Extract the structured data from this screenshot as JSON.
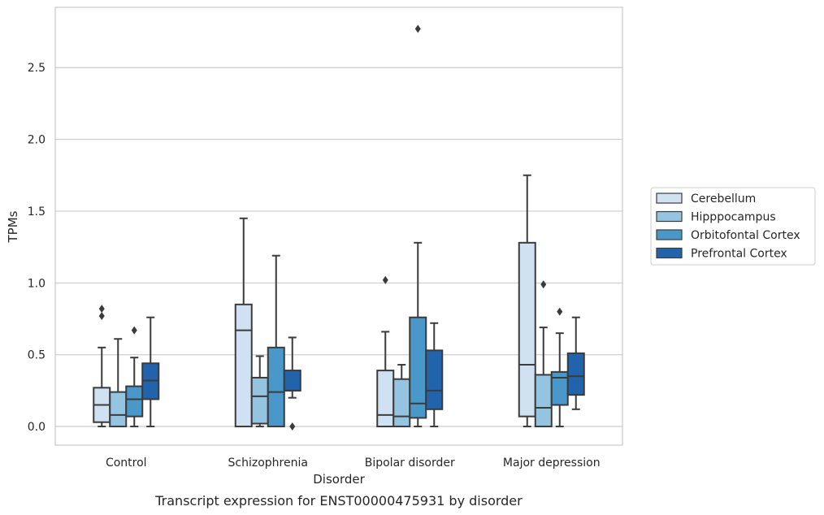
{
  "chart_data": {
    "type": "box",
    "title": "",
    "caption": "Transcript expression for ENST00000475931 by disorder",
    "xlabel": "Disorder",
    "ylabel": "TPMs",
    "ylim": [
      -0.13,
      2.92
    ],
    "yticks": [
      0.0,
      0.5,
      1.0,
      1.5,
      2.0,
      2.5
    ],
    "ytick_labels": [
      "0.0",
      "0.5",
      "1.0",
      "1.5",
      "2.0",
      "2.5"
    ],
    "grid": "horizontal",
    "legend_position": "right",
    "categories": [
      "Control",
      "Schizophrenia",
      "Bipolar disorder",
      "Major depression"
    ],
    "series": [
      {
        "name": "Cerebellum",
        "color": "#d0e1f2",
        "boxes": [
          {
            "whisker_low": 0.0,
            "q1": 0.03,
            "median": 0.15,
            "q3": 0.27,
            "whisker_high": 0.55,
            "outliers": [
              0.77,
              0.82
            ]
          },
          {
            "whisker_low": 0.0,
            "q1": 0.0,
            "median": 0.67,
            "q3": 0.85,
            "whisker_high": 1.45,
            "outliers": []
          },
          {
            "whisker_low": 0.0,
            "q1": 0.0,
            "median": 0.08,
            "q3": 0.39,
            "whisker_high": 0.66,
            "outliers": [
              1.02
            ]
          },
          {
            "whisker_low": 0.0,
            "q1": 0.07,
            "median": 0.43,
            "q3": 1.28,
            "whisker_high": 1.75,
            "outliers": []
          }
        ]
      },
      {
        "name": "Hipppocampus",
        "color": "#94c4df",
        "boxes": [
          {
            "whisker_low": 0.0,
            "q1": 0.0,
            "median": 0.08,
            "q3": 0.24,
            "whisker_high": 0.61,
            "outliers": []
          },
          {
            "whisker_low": 0.0,
            "q1": 0.02,
            "median": 0.21,
            "q3": 0.34,
            "whisker_high": 0.49,
            "outliers": []
          },
          {
            "whisker_low": 0.0,
            "q1": 0.0,
            "median": 0.07,
            "q3": 0.33,
            "whisker_high": 0.43,
            "outliers": []
          },
          {
            "whisker_low": 0.0,
            "q1": 0.0,
            "median": 0.13,
            "q3": 0.36,
            "whisker_high": 0.69,
            "outliers": [
              0.99
            ]
          }
        ]
      },
      {
        "name": "Orbitofontal Cortex",
        "color": "#4a98c9",
        "boxes": [
          {
            "whisker_low": 0.0,
            "q1": 0.07,
            "median": 0.19,
            "q3": 0.28,
            "whisker_high": 0.48,
            "outliers": [
              0.67
            ]
          },
          {
            "whisker_low": 0.0,
            "q1": 0.0,
            "median": 0.24,
            "q3": 0.55,
            "whisker_high": 1.19,
            "outliers": []
          },
          {
            "whisker_low": 0.0,
            "q1": 0.06,
            "median": 0.16,
            "q3": 0.76,
            "whisker_high": 1.28,
            "outliers": [
              2.77
            ]
          },
          {
            "whisker_low": 0.0,
            "q1": 0.15,
            "median": 0.34,
            "q3": 0.38,
            "whisker_high": 0.65,
            "outliers": [
              0.8
            ]
          }
        ]
      },
      {
        "name": "Prefrontal Cortex",
        "color": "#2164ab",
        "boxes": [
          {
            "whisker_low": 0.0,
            "q1": 0.19,
            "median": 0.32,
            "q3": 0.44,
            "whisker_high": 0.76,
            "outliers": []
          },
          {
            "whisker_low": 0.2,
            "q1": 0.25,
            "median": 0.25,
            "q3": 0.39,
            "whisker_high": 0.62,
            "outliers": [
              0.0
            ]
          },
          {
            "whisker_low": 0.0,
            "q1": 0.12,
            "median": 0.25,
            "q3": 0.53,
            "whisker_high": 0.72,
            "outliers": []
          },
          {
            "whisker_low": 0.12,
            "q1": 0.22,
            "median": 0.35,
            "q3": 0.51,
            "whisker_high": 0.76,
            "outliers": []
          }
        ]
      }
    ]
  }
}
